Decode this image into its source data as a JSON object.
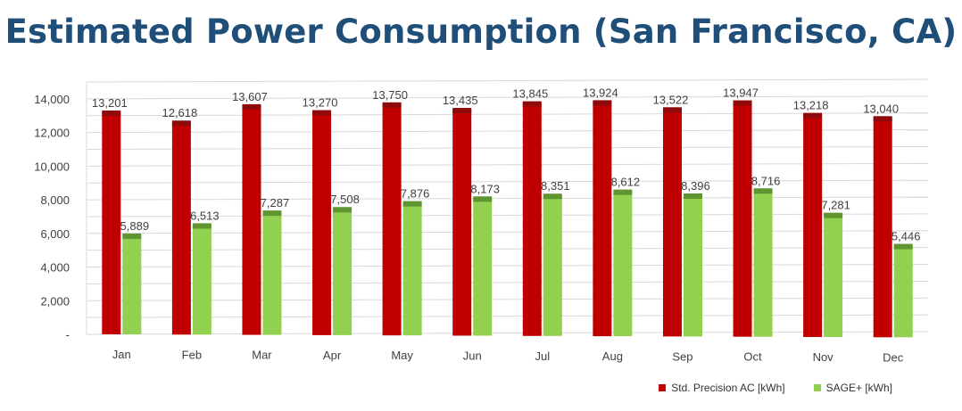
{
  "title": "Estimated Power Consumption (San Francisco, CA)",
  "colors": {
    "red": "#c00000",
    "red_top": "#8f0a0a",
    "green": "#92d050",
    "green_top": "#5f9430",
    "grid": "#d9d9d9",
    "text": "#404040"
  },
  "chart_data": {
    "type": "bar",
    "title": "Estimated Power Consumption (San Francisco, CA)",
    "categories": [
      "Jan",
      "Feb",
      "Mar",
      "Apr",
      "May",
      "Jun",
      "Jul",
      "Aug",
      "Sep",
      "Oct",
      "Nov",
      "Dec"
    ],
    "series": [
      {
        "name": "Std. Precision AC [kWh]",
        "values": [
          13201,
          12618,
          13607,
          13270,
          13750,
          13435,
          13845,
          13924,
          13522,
          13947,
          13218,
          13040
        ],
        "labels": [
          "13,201",
          "12,618",
          "13,607",
          "13,270",
          "13,750",
          "13,435",
          "13,845",
          "13,924",
          "13,522",
          "13,947",
          "13,218",
          "13,040"
        ]
      },
      {
        "name": "SAGE+ [kWh]",
        "values": [
          5889,
          6513,
          7287,
          7508,
          7876,
          8173,
          8351,
          8612,
          8396,
          8716,
          7281,
          5446
        ],
        "labels": [
          "5,889",
          "6,513",
          "7,287",
          "7,508",
          "7,876",
          "8,173",
          "8,351",
          "8,612",
          "8,396",
          "8,716",
          "7,281",
          "5,446"
        ]
      }
    ],
    "yticks": [
      "-",
      "2,000",
      "4,000",
      "6,000",
      "8,000",
      "10,000",
      "12,000",
      "14,000"
    ],
    "ylim": [
      0,
      14000
    ],
    "grid": true,
    "legend_position": "bottom-right"
  }
}
